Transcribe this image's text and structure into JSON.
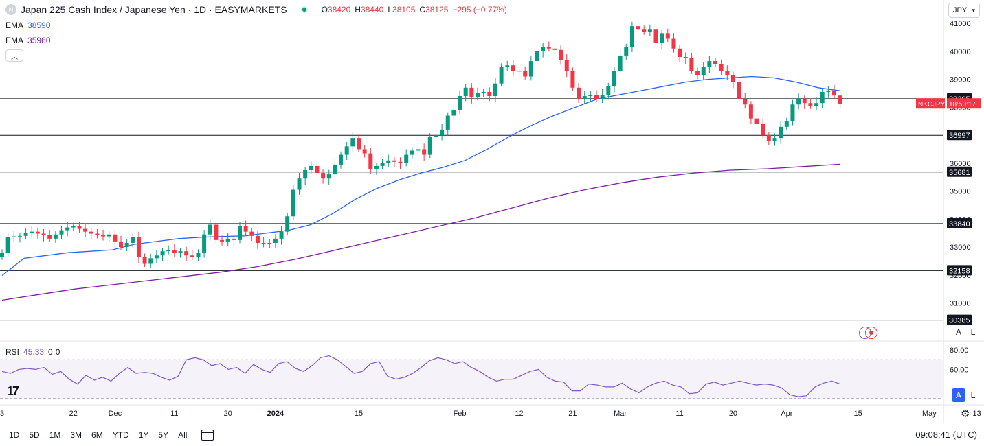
{
  "header": {
    "title": "Japan 225 Cash Index / Japanese Yen · 1D · EASYMARKETS",
    "logo_letter": "N",
    "ohlc": {
      "o_label": "O",
      "o": "38420",
      "h_label": "H",
      "h": "38440",
      "l_label": "L",
      "l": "38105",
      "c_label": "C",
      "c": "38125",
      "change": "−295 (−0.77%)"
    }
  },
  "indicators": {
    "ema_fast": {
      "name": "EMA",
      "value": "38590",
      "color": "#2962ff"
    },
    "ema_slow": {
      "name": "EMA",
      "value": "35960",
      "color": "#7b1fa2"
    },
    "rsi": {
      "name": "RSI",
      "value": "45.33",
      "a": "0",
      "b": "0",
      "color": "#7e57c2"
    }
  },
  "currency": "JPY",
  "scale_buttons": {
    "auto": "A",
    "log": "L"
  },
  "colors": {
    "up": "#089981",
    "down": "#f23645",
    "level": "#131722"
  },
  "price_tag": {
    "symbol": "NKCJPY",
    "countdown": "18:50:17"
  },
  "time_ranges": [
    "1D",
    "5D",
    "1M",
    "3M",
    "6M",
    "YTD",
    "1Y",
    "5Y",
    "All"
  ],
  "clock": "09:08:41 (UTC)",
  "chart_data": {
    "type": "candlestick",
    "y_ticks": [
      31000,
      32000,
      33000,
      34000,
      35000,
      36000,
      37000,
      38000,
      39000,
      40000,
      41000
    ],
    "horizontal_levels": [
      38305,
      36997,
      35681,
      33840,
      32158,
      30385
    ],
    "x_ticks": [
      {
        "label": "3",
        "i": 0
      },
      {
        "label": "22",
        "i": 12
      },
      {
        "label": "Dec",
        "i": 19
      },
      {
        "label": "11",
        "i": 29
      },
      {
        "label": "20",
        "i": 38
      },
      {
        "label": "2024",
        "i": 46
      },
      {
        "label": "15",
        "i": 60
      },
      {
        "label": "Feb",
        "i": 77
      },
      {
        "label": "12",
        "i": 87
      },
      {
        "label": "21",
        "i": 96
      },
      {
        "label": "Mar",
        "i": 104
      },
      {
        "label": "11",
        "i": 114
      },
      {
        "label": "20",
        "i": 123
      },
      {
        "label": "Apr",
        "i": 132
      },
      {
        "label": "15",
        "i": 144
      },
      {
        "label": "May",
        "i": 156
      },
      {
        "label": "13",
        "i": 164
      }
    ],
    "candles_close": [
      32800,
      33350,
      33380,
      33400,
      33500,
      33550,
      33480,
      33420,
      33300,
      33450,
      33600,
      33700,
      33750,
      33650,
      33550,
      33480,
      33420,
      33380,
      33450,
      33200,
      33000,
      33150,
      33350,
      32650,
      32400,
      32600,
      32700,
      32850,
      32900,
      32800,
      32850,
      32700,
      32650,
      32800,
      33450,
      33800,
      33250,
      33200,
      33300,
      33250,
      33750,
      33550,
      33400,
      33150,
      33100,
      33150,
      33300,
      33550,
      34100,
      35050,
      35450,
      35750,
      35900,
      35650,
      35450,
      35600,
      35950,
      36300,
      36600,
      36900,
      36500,
      36350,
      35800,
      35900,
      36000,
      36100,
      36050,
      36000,
      36300,
      36450,
      36500,
      36300,
      36950,
      37000,
      37200,
      37700,
      37900,
      38400,
      38700,
      38350,
      38500,
      38550,
      38400,
      38850,
      39450,
      39500,
      39300,
      39300,
      39100,
      39650,
      40000,
      40150,
      40100,
      40050,
      39700,
      39300,
      38700,
      38300,
      38400,
      38450,
      38300,
      38450,
      38750,
      39300,
      39850,
      40150,
      40900,
      40800,
      40700,
      40800,
      40300,
      40650,
      40450,
      40100,
      39800,
      39750,
      39300,
      39150,
      39450,
      39650,
      39550,
      39300,
      39150,
      38900,
      38300,
      38100,
      37600,
      37400,
      37000,
      36800,
      36900,
      37300,
      37500,
      38100,
      38300,
      38150,
      38050,
      38150,
      38550,
      38600,
      38420,
      38125
    ],
    "ema_fast": [
      31980,
      32600,
      32700,
      32800,
      32850,
      32900,
      33100,
      33200,
      33300,
      33350,
      33380,
      33400,
      33500,
      33600,
      33800,
      34200,
      34700,
      35100,
      35400,
      35650,
      35850,
      36100,
      36500,
      36950,
      37350,
      37700,
      38000,
      38300,
      38450,
      38600,
      38750,
      38900,
      39000,
      39050,
      39100,
      39050,
      38900,
      38700,
      38590
    ],
    "ema_slow": [
      31100,
      31300,
      31500,
      31650,
      31800,
      31950,
      32100,
      32300,
      32550,
      32850,
      33150,
      33450,
      33750,
      34050,
      34400,
      34750,
      35050,
      35300,
      35500,
      35650,
      35750,
      35800,
      35880,
      35960
    ],
    "rsi": [
      58,
      56,
      60,
      61,
      60,
      62,
      55,
      58,
      50,
      45,
      54,
      49,
      52,
      48,
      56,
      62,
      56,
      57,
      56,
      52,
      49,
      53,
      70,
      72,
      70,
      64,
      66,
      60,
      62,
      56,
      65,
      60,
      57,
      66,
      68,
      61,
      58,
      64,
      72,
      74,
      70,
      63,
      56,
      58,
      66,
      68,
      53,
      50,
      52,
      56,
      62,
      69,
      72,
      70,
      66,
      68,
      62,
      58,
      52,
      48,
      50,
      50,
      54,
      58,
      60,
      52,
      48,
      47,
      38,
      38,
      45,
      44,
      42,
      42,
      46,
      40,
      36,
      42,
      46,
      48,
      44,
      42,
      35,
      36,
      45,
      47,
      44,
      46,
      48,
      46,
      44,
      45,
      44,
      41,
      34,
      32,
      33,
      42,
      46,
      48,
      45
    ],
    "rsi_levels": [
      70,
      50,
      30
    ]
  }
}
